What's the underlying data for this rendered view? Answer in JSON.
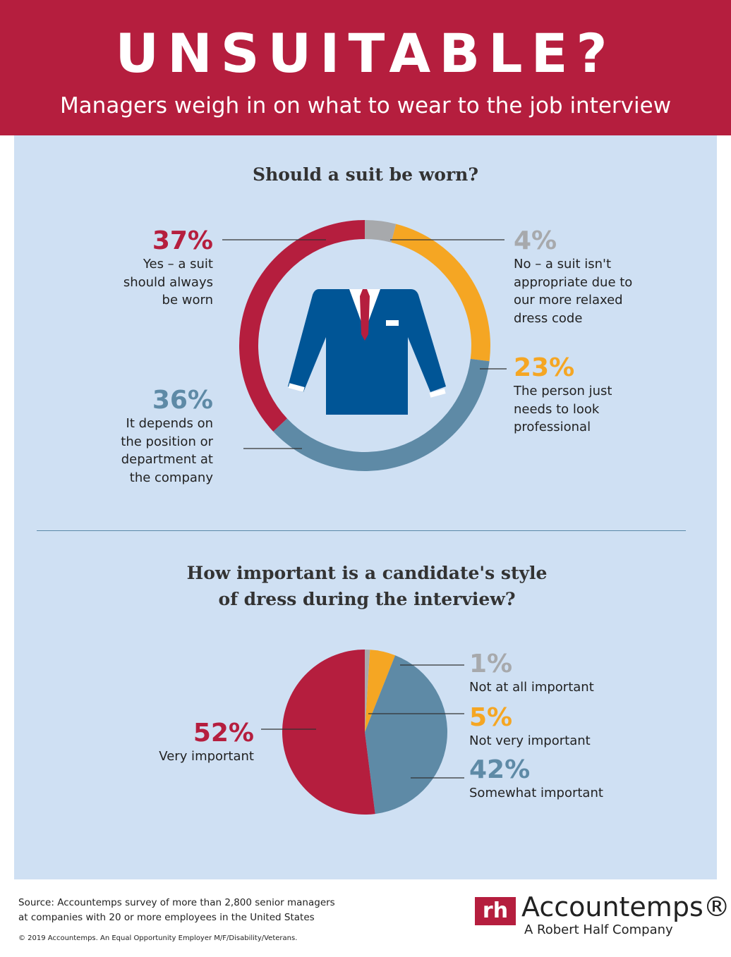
{
  "header": {
    "title": "UNSUITABLE?",
    "subtitle": "Managers weigh in on what to wear to the job interview"
  },
  "colors": {
    "red": "#b51e3e",
    "orange": "#f5a623",
    "gray": "#a7a9ac",
    "blue": "#5e8aa6",
    "suit": "#005596",
    "background": "#cfe0f3"
  },
  "chart_data": [
    {
      "type": "pie",
      "variant": "donut",
      "title": "Should a suit be worn?",
      "slices": [
        {
          "pct_label": "4%",
          "value": 4,
          "label": "No – a suit isn't appropriate due to our more relaxed dress code",
          "color": "#a7a9ac"
        },
        {
          "pct_label": "23%",
          "value": 23,
          "label": "The person just needs to look professional",
          "color": "#f5a623"
        },
        {
          "pct_label": "36%",
          "value": 36,
          "label": "It depends on the position or department at the company",
          "color": "#5e8aa6"
        },
        {
          "pct_label": "37%",
          "value": 37,
          "label": "Yes – a suit should always be worn",
          "color": "#b51e3e"
        }
      ],
      "center_icon": "suit-jacket-icon"
    },
    {
      "type": "pie",
      "title": "How important is a candidate's style of dress during the interview?",
      "slices": [
        {
          "pct_label": "1%",
          "value": 1,
          "label": "Not at all important",
          "color": "#a7a9ac"
        },
        {
          "pct_label": "5%",
          "value": 5,
          "label": "Not very important",
          "color": "#f5a623"
        },
        {
          "pct_label": "42%",
          "value": 42,
          "label": "Somewhat important",
          "color": "#5e8aa6"
        },
        {
          "pct_label": "52%",
          "value": 52,
          "label": "Very important",
          "color": "#b51e3e"
        }
      ]
    }
  ],
  "footer": {
    "source1": "Source: Accountemps survey of more than 2,800 senior managers",
    "source2": "at companies with 20 or more employees in the United States",
    "copyright": "© 2019 Accountemps. An Equal Opportunity Employer M/F/Disability/Veterans.",
    "logo_mark": "rh",
    "brand": "Accountemps®",
    "brand_sub": "A Robert Half Company"
  }
}
